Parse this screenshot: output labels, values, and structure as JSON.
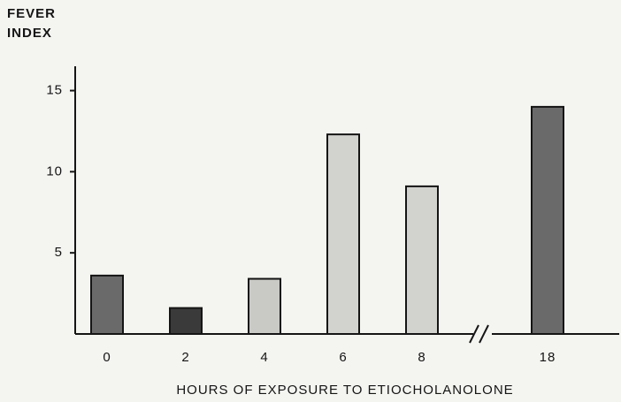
{
  "chart_data": {
    "type": "bar",
    "ylabel_lines": [
      "FEVER",
      "INDEX"
    ],
    "xlabel": "HOURS OF EXPOSURE TO ETIOCHOLANOLONE",
    "categories": [
      "0",
      "2",
      "4",
      "6",
      "8",
      "18"
    ],
    "values": [
      3.6,
      1.6,
      3.4,
      12.3,
      9.1,
      14.0
    ],
    "colors": [
      "#6a6a6a",
      "#3a3a3a",
      "#c9c9c6",
      "#d2d2cf",
      "#d2d2cf",
      "#6a6a6a"
    ],
    "ylim": [
      0,
      16.5
    ],
    "yticks": [
      5,
      10,
      15
    ],
    "grid": false
  }
}
